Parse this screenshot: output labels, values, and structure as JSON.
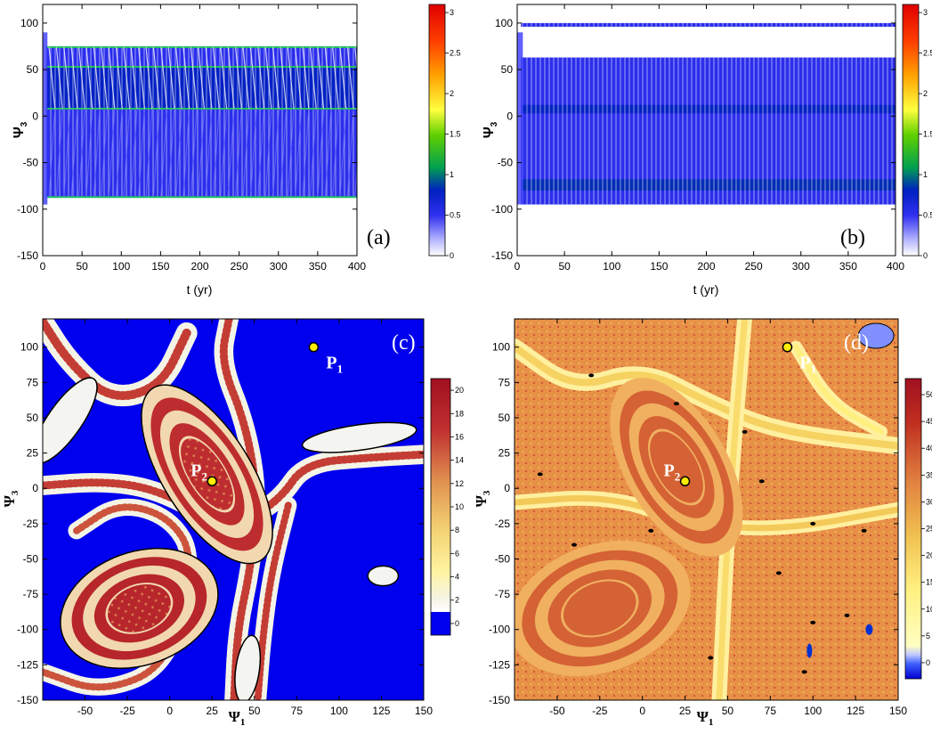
{
  "figure": {
    "background": "#ffffff"
  },
  "chart_data": [
    {
      "panel": "(a)",
      "type": "heatmap",
      "xlabel": "t (yr)",
      "ylabel": "Ψ",
      "ylabel_subscript": "3",
      "xlim": [
        0,
        400
      ],
      "ylim": [
        -150,
        120
      ],
      "xticks": [
        0,
        50,
        100,
        150,
        200,
        250,
        300,
        350,
        400
      ],
      "yticks": [
        -150,
        -100,
        -50,
        0,
        50,
        100
      ],
      "colorbar": {
        "min": 0,
        "max": 3.1,
        "ticks": [
          0,
          0.5,
          1,
          1.5,
          2,
          2.5,
          3
        ]
      },
      "bands": [
        {
          "y_from": -87,
          "y_to": 74,
          "level": 0.4
        },
        {
          "y_from": 8,
          "y_to": 53,
          "level": 0.85
        }
      ],
      "edge_lines": [
        74,
        53,
        8,
        -87
      ],
      "oscillation_period_yr": 9.5
    },
    {
      "panel": "(b)",
      "type": "heatmap",
      "xlabel": "t (yr)",
      "ylabel": "Ψ",
      "ylabel_subscript": "3",
      "xlim": [
        0,
        400
      ],
      "ylim": [
        -150,
        120
      ],
      "xticks": [
        0,
        50,
        100,
        150,
        200,
        250,
        300,
        350,
        400
      ],
      "yticks": [
        -150,
        -100,
        -50,
        0,
        50,
        100
      ],
      "colorbar": {
        "min": 0,
        "max": 3.1,
        "ticks": [
          0,
          0.5,
          1,
          1.5,
          2,
          2.5,
          3
        ]
      },
      "bands": [
        {
          "y_from": -95,
          "y_to": 63,
          "level": 0.4
        },
        {
          "y_from": 96,
          "y_to": 100,
          "level": 0.4
        },
        {
          "y_from": -80,
          "y_to": -68,
          "level": 0.95
        },
        {
          "y_from": 3,
          "y_to": 12,
          "level": 0.85
        }
      ]
    },
    {
      "panel": "(c)",
      "type": "heatmap",
      "xlabel": "Ψ",
      "xlabel_subscript": "1",
      "ylabel": "Ψ",
      "ylabel_subscript": "3",
      "xlim": [
        -75,
        150
      ],
      "ylim": [
        -150,
        120
      ],
      "xticks": [
        -50,
        -25,
        0,
        25,
        50,
        75,
        100,
        125,
        150
      ],
      "yticks": [
        -150,
        -125,
        -100,
        -75,
        -50,
        -25,
        0,
        25,
        50,
        75,
        100
      ],
      "colorbar": {
        "min": -1,
        "max": 21,
        "ticks": [
          0,
          2,
          4,
          6,
          8,
          10,
          12,
          14,
          16,
          18,
          20
        ]
      },
      "points": [
        {
          "label": "P",
          "subscript": "1",
          "x": 85,
          "y": 100
        },
        {
          "label": "P",
          "subscript": "2",
          "x": 25,
          "y": 5
        }
      ],
      "ellipses": [
        {
          "cx": 22,
          "cy": 10,
          "rx": 26,
          "ry": 72,
          "rot": -32,
          "level": 17
        },
        {
          "cx": -18,
          "cy": -85,
          "rx": 48,
          "ry": 40,
          "rot": -20,
          "level": 18
        },
        {
          "cx": -62,
          "cy": 48,
          "rx": 10,
          "ry": 36,
          "rot": 35,
          "level": 1
        },
        {
          "cx": 112,
          "cy": 36,
          "rx": 34,
          "ry": 9,
          "rot": -8,
          "level": 1
        },
        {
          "cx": 126,
          "cy": -62,
          "rx": 9,
          "ry": 7,
          "rot": 0,
          "level": 1
        },
        {
          "cx": 46,
          "cy": -128,
          "rx": 7,
          "ry": 24,
          "rot": 8,
          "level": 1
        }
      ],
      "curves": [
        {
          "pts": [
            [
              -75,
              118
            ],
            [
              -60,
              90
            ],
            [
              -35,
              62
            ],
            [
              -5,
              72
            ],
            [
              10,
              110
            ]
          ],
          "level": 16,
          "width": 10
        },
        {
          "pts": [
            [
              35,
              120
            ],
            [
              30,
              90
            ],
            [
              45,
              45
            ],
            [
              52,
              -5
            ],
            [
              48,
              -55
            ],
            [
              40,
              -100
            ],
            [
              38,
              -150
            ]
          ],
          "level": 16,
          "width": 9
        },
        {
          "pts": [
            [
              -75,
              2
            ],
            [
              -40,
              5
            ],
            [
              -10,
              0
            ],
            [
              20,
              -18
            ],
            [
              45,
              -22
            ],
            [
              65,
              -8
            ],
            [
              80,
              18
            ],
            [
              120,
              22
            ],
            [
              150,
              24
            ]
          ],
          "level": 16,
          "width": 9
        },
        {
          "pts": [
            [
              -55,
              -30
            ],
            [
              -30,
              -10
            ],
            [
              0,
              -20
            ],
            [
              15,
              -50
            ],
            [
              0,
              -125
            ],
            [
              -40,
              -145
            ],
            [
              -75,
              -130
            ]
          ],
          "level": 15,
          "width": 8
        },
        {
          "pts": [
            [
              70,
              -12
            ],
            [
              60,
              -60
            ],
            [
              55,
              -105
            ],
            [
              52,
              -150
            ]
          ],
          "level": 16,
          "width": 8
        }
      ]
    },
    {
      "panel": "(d)",
      "type": "heatmap",
      "xlabel": "Ψ",
      "xlabel_subscript": "1",
      "ylabel": "Ψ",
      "ylabel_subscript": "3",
      "xlim": [
        -75,
        150
      ],
      "ylim": [
        -150,
        120
      ],
      "xticks": [
        -50,
        -25,
        0,
        25,
        50,
        75,
        100,
        125,
        150
      ],
      "yticks": [
        -150,
        -125,
        -100,
        -75,
        -50,
        -25,
        0,
        25,
        50,
        75,
        100
      ],
      "colorbar": {
        "min": -3,
        "max": 53,
        "ticks": [
          0,
          5,
          10,
          15,
          20,
          25,
          30,
          35,
          40,
          45,
          50
        ]
      },
      "points": [
        {
          "label": "P",
          "subscript": "1",
          "x": 85,
          "y": 100
        },
        {
          "label": "P",
          "subscript": "2",
          "x": 25,
          "y": 5
        }
      ],
      "ellipses": [
        {
          "cx": 20,
          "cy": 15,
          "rx": 30,
          "ry": 70,
          "rot": -30,
          "level": 38
        },
        {
          "cx": -25,
          "cy": -85,
          "rx": 55,
          "ry": 45,
          "rot": -20,
          "level": 38
        }
      ],
      "curves": [
        {
          "pts": [
            [
              -75,
              100
            ],
            [
              -40,
              70
            ],
            [
              0,
              85
            ],
            [
              40,
              60
            ],
            [
              80,
              40
            ],
            [
              150,
              30
            ]
          ],
          "level": 20,
          "width": 8
        },
        {
          "pts": [
            [
              60,
              120
            ],
            [
              55,
              50
            ],
            [
              50,
              -30
            ],
            [
              45,
              -150
            ]
          ],
          "level": 18,
          "width": 7
        },
        {
          "pts": [
            [
              -75,
              -10
            ],
            [
              -20,
              -5
            ],
            [
              30,
              -25
            ],
            [
              80,
              -30
            ],
            [
              150,
              -15
            ]
          ],
          "level": 22,
          "width": 7
        },
        {
          "pts": [
            [
              90,
              100
            ],
            [
              110,
              60
            ],
            [
              140,
              40
            ]
          ],
          "level": 14,
          "width": 6
        }
      ]
    }
  ]
}
